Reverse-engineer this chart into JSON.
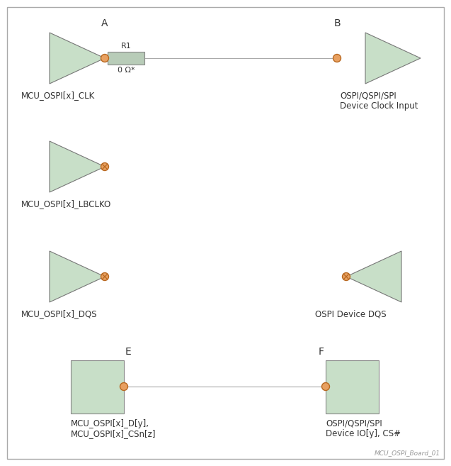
{
  "bg_color": "#ffffff",
  "tri_fill": "#c8dfc8",
  "tri_edge": "#777777",
  "rect_fill": "#c8dfc8",
  "rect_edge": "#888888",
  "dot_fill": "#e8a060",
  "dot_edge": "#b86820",
  "line_color": "#aaaaaa",
  "text_color": "#333333",
  "border_color": "#aaaaaa",
  "label_A": "A",
  "label_B": "B",
  "label_E": "E",
  "label_F": "F",
  "label_R1": "R1",
  "label_ohm": "0 Ω*",
  "label_clk": "MCU_OSPI[x]_CLK",
  "label_clk_dev": "OSPI/QSPI/SPI\nDevice Clock Input",
  "label_lbclk": "MCU_OSPI[x]_LBCLKO",
  "label_dqs_mcu": "MCU_OSPI[x]_DQS",
  "label_dqs_dev": "OSPI Device DQS",
  "label_data_mcu": "MCU_OSPI[x]_D[y],\nMCU_OSPI[x]_CSn[z]",
  "label_data_dev": "OSPI/QSPI/SPI\nDevice IO[y], CS#",
  "watermark": "MCU_OSPI_Board_01"
}
